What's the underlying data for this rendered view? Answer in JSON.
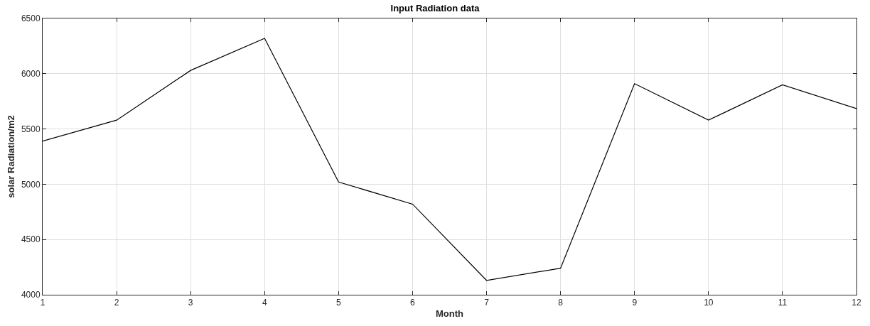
{
  "chart_data": {
    "type": "line",
    "title": "Input Radiation data",
    "xlabel": "Month",
    "ylabel": "solar Radiation/m2",
    "x": [
      1,
      2,
      3,
      4,
      5,
      6,
      7,
      8,
      9,
      10,
      11,
      12
    ],
    "series": [
      {
        "color": "#000000",
        "values": [
          5390,
          5580,
          6030,
          6320,
          5020,
          4820,
          4130,
          4240,
          5910,
          5580,
          5900,
          5685
        ]
      }
    ],
    "xlim": [
      1,
      12
    ],
    "xticks": [
      1,
      2,
      3,
      4,
      5,
      6,
      7,
      8,
      9,
      10,
      11,
      12
    ],
    "ylim": [
      4000,
      6500
    ],
    "yticks": [
      4000,
      4500,
      5000,
      5500,
      6000,
      6500
    ],
    "grid": true,
    "marker": "none",
    "line_style": "solid"
  }
}
